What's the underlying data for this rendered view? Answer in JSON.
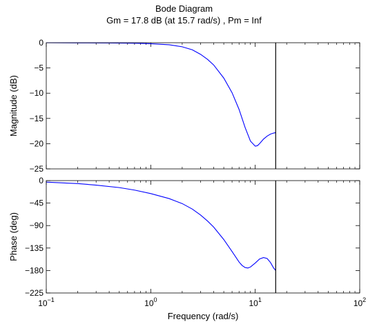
{
  "chart_data": {
    "type": "line",
    "title": "Bode Diagram",
    "subtitle": "Gm = 17.8 dB (at 15.7 rad/s) ,  Pm = Inf",
    "xlabel": "Frequency  (rad/s)",
    "x_scale": "log",
    "xlim": [
      0.1,
      100
    ],
    "x_ticks": [
      {
        "base": "10",
        "exp": "−1",
        "value": 0.1
      },
      {
        "base": "10",
        "exp": "0",
        "value": 1
      },
      {
        "base": "10",
        "exp": "1",
        "value": 10
      },
      {
        "base": "10",
        "exp": "2",
        "value": 100
      }
    ],
    "line_color": "#0000ff",
    "marker_x": 15.7,
    "grid": false,
    "panels": [
      {
        "name": "magnitude",
        "ylabel": "Magnitude (dB)",
        "ylim": [
          -25,
          0
        ],
        "y_ticks": [
          {
            "value": 0,
            "label": "0"
          },
          {
            "value": -5,
            "label": "−5"
          },
          {
            "value": -10,
            "label": "−10"
          },
          {
            "value": -15,
            "label": "−15"
          },
          {
            "value": -20,
            "label": "−20"
          },
          {
            "value": -25,
            "label": "−25"
          }
        ],
        "series": [
          {
            "x": [
              0.1,
              0.2,
              0.4,
              0.7,
              1.0,
              1.5,
              2.0,
              2.5,
              3.0,
              3.5,
              4.0,
              5.0,
              6.0,
              7.0,
              8.0,
              9.0,
              10.0,
              10.5,
              11.0,
              12.0,
              13.0,
              14.0,
              15.0,
              15.7
            ],
            "y": [
              0,
              -0.02,
              -0.05,
              -0.1,
              -0.2,
              -0.4,
              -0.8,
              -1.4,
              -2.3,
              -3.3,
              -4.4,
              -7.0,
              -9.9,
              -13.2,
              -16.8,
              -19.5,
              -20.5,
              -20.4,
              -20.0,
              -19.1,
              -18.5,
              -18.1,
              -17.9,
              -17.8
            ]
          }
        ]
      },
      {
        "name": "phase",
        "ylabel": "Phase (deg)",
        "ylim": [
          -225,
          0
        ],
        "y_ticks": [
          {
            "value": 0,
            "label": "0"
          },
          {
            "value": -45,
            "label": "−45"
          },
          {
            "value": -90,
            "label": "−90"
          },
          {
            "value": -135,
            "label": "−135"
          },
          {
            "value": -180,
            "label": "−180"
          },
          {
            "value": -225,
            "label": "−225"
          }
        ],
        "series": [
          {
            "x": [
              0.1,
              0.2,
              0.3,
              0.5,
              0.7,
              1.0,
              1.5,
              2.0,
              2.5,
              3.0,
              3.5,
              4.0,
              5.0,
              6.0,
              7.0,
              7.5,
              8.0,
              8.5,
              9.0,
              10.0,
              11.0,
              12.0,
              13.0,
              14.0,
              15.0,
              15.7
            ],
            "y": [
              -3,
              -6,
              -9,
              -14,
              -19,
              -26,
              -36,
              -46,
              -57,
              -69,
              -81,
              -93,
              -118,
              -142,
              -163,
              -170,
              -174,
              -175,
              -173,
              -165,
              -157,
              -154,
              -156,
              -164,
              -175,
              -180
            ]
          }
        ]
      }
    ]
  }
}
